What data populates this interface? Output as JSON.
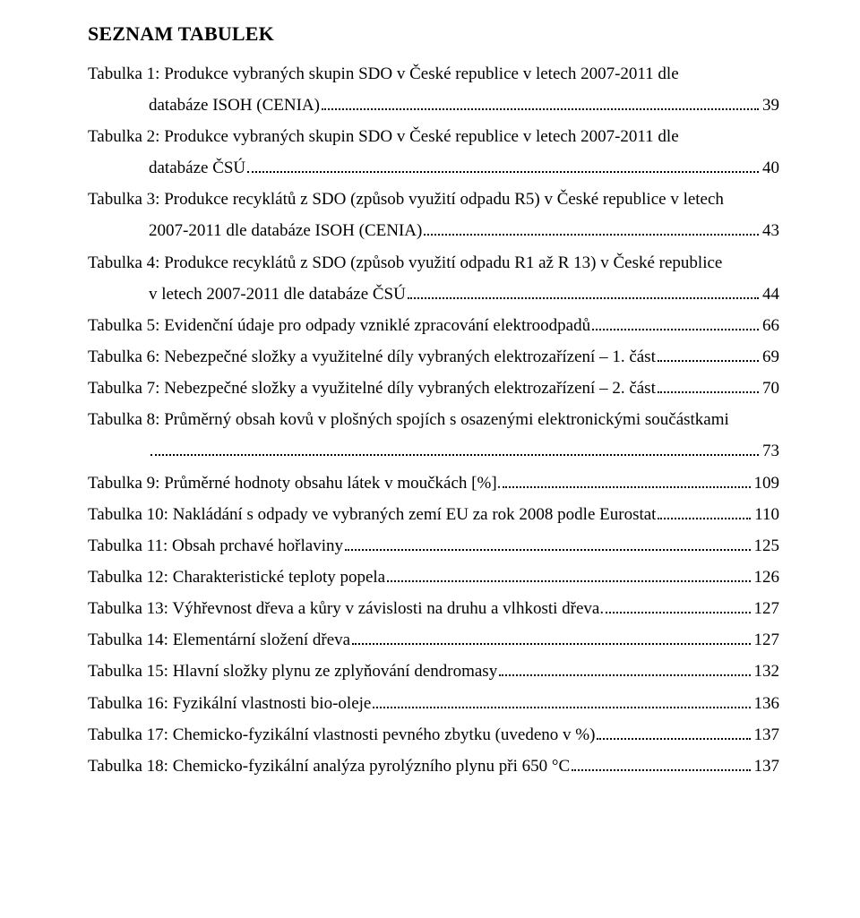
{
  "heading": "SEZNAM TABULEK",
  "entries": [
    {
      "lines": [
        "Tabulka 1: Produkce vybraných skupin SDO v České republice v letech 2007-2011 dle",
        "databáze ISOH (CENIA)"
      ],
      "page": "39"
    },
    {
      "lines": [
        "Tabulka 2: Produkce vybraných skupin SDO v České republice v letech 2007-2011 dle",
        "databáze ČSÚ"
      ],
      "page": "40"
    },
    {
      "lines": [
        "Tabulka 3: Produkce recyklátů z SDO (způsob využití odpadu R5) v České republice v letech",
        "2007-2011 dle databáze ISOH (CENIA)"
      ],
      "page": "43"
    },
    {
      "lines": [
        "Tabulka 4: Produkce recyklátů z SDO (způsob využití odpadu R1 až R 13) v České republice",
        "v letech 2007-2011 dle databáze ČSÚ"
      ],
      "page": "44"
    },
    {
      "lines": [
        "Tabulka 5: Evidenční údaje pro odpady vzniklé zpracování elektroodpadů"
      ],
      "page": "66"
    },
    {
      "lines": [
        "Tabulka 6: Nebezpečné složky a využitelné díly vybraných elektrozařízení – 1. část"
      ],
      "page": "69"
    },
    {
      "lines": [
        "Tabulka 7: Nebezpečné složky a využitelné díly vybraných elektrozařízení – 2. část"
      ],
      "page": "70"
    },
    {
      "lines": [
        "Tabulka 8: Průměrný obsah kovů v plošných spojích s osazenými elektronickými součástkami",
        ""
      ],
      "page": "73"
    },
    {
      "lines": [
        "Tabulka 9: Průměrné hodnoty obsahu látek v moučkách [%]."
      ],
      "page": "109"
    },
    {
      "lines": [
        "Tabulka 10: Nakládání s odpady ve vybraných zemí EU za rok 2008 podle Eurostat"
      ],
      "page": "110"
    },
    {
      "lines": [
        "Tabulka 11: Obsah prchavé hořlaviny"
      ],
      "page": "125"
    },
    {
      "lines": [
        "Tabulka 12: Charakteristické teploty popela"
      ],
      "page": "126"
    },
    {
      "lines": [
        "Tabulka 13: Výhřevnost dřeva a kůry v závislosti na druhu a vlhkosti dřeva."
      ],
      "page": "127"
    },
    {
      "lines": [
        "Tabulka 14: Elementární složení dřeva"
      ],
      "page": "127"
    },
    {
      "lines": [
        "Tabulka 15: Hlavní složky plynu ze zplyňování dendromasy"
      ],
      "page": "132"
    },
    {
      "lines": [
        "Tabulka 16: Fyzikální vlastnosti bio-oleje"
      ],
      "page": "136"
    },
    {
      "lines": [
        "Tabulka 17: Chemicko-fyzikální vlastnosti pevného zbytku (uvedeno v %)"
      ],
      "page": "137"
    },
    {
      "lines": [
        "Tabulka 18: Chemicko-fyzikální analýza pyrolýzního plynu při 650 °C"
      ],
      "page": "137"
    }
  ]
}
